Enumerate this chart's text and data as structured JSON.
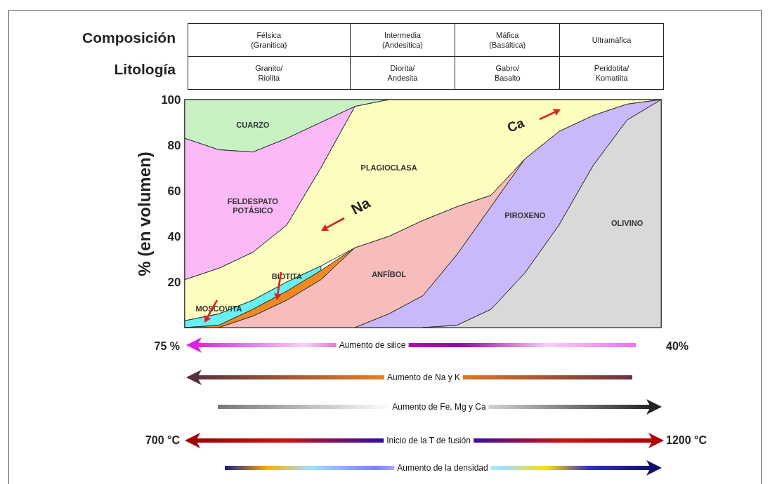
{
  "chart_data": {
    "type": "area",
    "stacked": true,
    "ylabel": "% (en volumen)",
    "ylim": [
      0,
      100
    ],
    "yticks": [
      20,
      40,
      60,
      80,
      100
    ],
    "tick_labels": "y",
    "categories": [
      null,
      null,
      null,
      null,
      null,
      null,
      null,
      null,
      null,
      null,
      null,
      null,
      null,
      null,
      null
    ],
    "series": [
      {
        "name": "OLIVINO",
        "color": "#d9d9d9",
        "values": [
          null,
          null,
          null,
          null,
          null,
          null,
          null,
          0,
          1,
          8,
          24,
          45,
          71,
          91,
          100
        ]
      },
      {
        "name": "PIROXENO",
        "color": "#c9b8fa",
        "values": [
          null,
          null,
          null,
          null,
          null,
          0,
          6,
          14,
          31,
          45,
          50,
          41,
          22,
          7,
          0
        ]
      },
      {
        "name": "ANFÍBOL",
        "color": "#f7bcbc",
        "values": [
          null,
          0,
          5,
          12,
          21,
          35,
          34,
          33,
          21,
          5,
          0,
          null,
          null,
          null,
          null
        ]
      },
      {
        "name": "BIOTITA",
        "color": "#f08a20",
        "values": [
          0,
          1,
          3,
          4,
          4,
          0,
          null,
          null,
          null,
          null,
          null,
          null,
          null,
          null,
          null
        ]
      },
      {
        "name": "MOSCOVITA",
        "color": "#66f0f0",
        "values": [
          3,
          5,
          4,
          4,
          2,
          null,
          null,
          null,
          null,
          null,
          null,
          null,
          null,
          null,
          null
        ]
      },
      {
        "name": "PLAGIOCLASA",
        "color": "#fdfdc0",
        "values": [
          18,
          20,
          21,
          25,
          43,
          62,
          60,
          53,
          47,
          42,
          26,
          14,
          7,
          2,
          0
        ]
      },
      {
        "name": "FELDESPATO POTÁSICO",
        "color": "#fbb9f7",
        "values": [
          62,
          52,
          44,
          38,
          20,
          0,
          null,
          null,
          null,
          null,
          null,
          null,
          null,
          null,
          null
        ]
      },
      {
        "name": "CUARZO",
        "color": "#c8f2c4",
        "values": [
          17,
          22,
          23,
          17,
          10,
          3,
          0,
          null,
          null,
          null,
          null,
          null,
          null,
          null,
          null
        ]
      }
    ],
    "annotations": [
      "Composición",
      "Litología",
      "Félsica\n(Granitica)",
      "Intermedia\n(Andesitica)",
      "Máfica\n(Basáltica)",
      "Ultramáfica",
      "Granito/\nRiolita",
      "Diorita/\nAndesita",
      "Gabro/\nBasalto",
      "Peridotita/\nKomatiita",
      "Na",
      "Ca",
      "Aumento de silice",
      "Aumento de Na y K",
      "Aumento de Fe, Mg y Ca",
      "Inicio de la T de fusión",
      "Aumento de la densidad",
      "75 %",
      "40%",
      "700 °C",
      "1200 °C"
    ]
  }
}
